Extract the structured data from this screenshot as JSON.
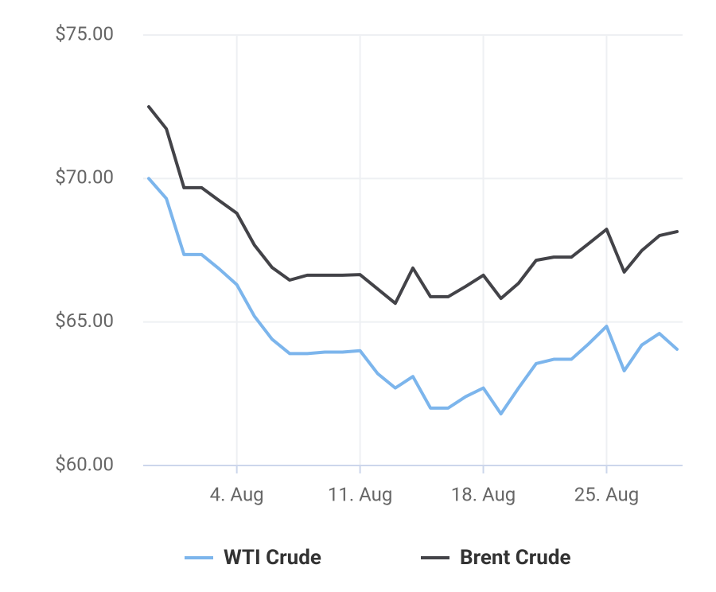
{
  "chart_data": {
    "type": "line",
    "x": [
      "30. Jul",
      "31. Jul",
      "1. Aug",
      "2. Aug",
      "3. Aug",
      "4. Aug",
      "5. Aug",
      "6. Aug",
      "7. Aug",
      "8. Aug",
      "9. Aug",
      "10. Aug",
      "11. Aug",
      "12. Aug",
      "13. Aug",
      "14. Aug",
      "15. Aug",
      "16. Aug",
      "17. Aug",
      "18. Aug",
      "19. Aug",
      "20. Aug",
      "21. Aug",
      "22. Aug",
      "23. Aug",
      "24. Aug",
      "25. Aug",
      "26. Aug",
      "27. Aug",
      "28. Aug",
      "29. Aug"
    ],
    "series": [
      {
        "name": "WTI Crude",
        "color": "#7cb5ec",
        "values": [
          70.0,
          69.3,
          67.35,
          67.35,
          66.85,
          66.3,
          65.2,
          64.4,
          63.9,
          63.9,
          63.95,
          63.95,
          64.0,
          63.2,
          62.7,
          63.1,
          62.0,
          62.0,
          62.4,
          62.7,
          61.8,
          62.7,
          63.55,
          63.7,
          63.7,
          64.25,
          64.85,
          63.3,
          64.2,
          64.6,
          64.05
        ]
      },
      {
        "name": "Brent Crude",
        "color": "#434348",
        "values": [
          72.5,
          71.73,
          69.68,
          69.68,
          69.23,
          68.79,
          67.68,
          66.9,
          66.46,
          66.63,
          66.63,
          66.63,
          66.65,
          66.15,
          65.65,
          66.88,
          65.88,
          65.88,
          66.24,
          66.63,
          65.82,
          66.35,
          67.15,
          67.26,
          67.26,
          67.74,
          68.23,
          66.74,
          67.49,
          68.01,
          68.15
        ]
      }
    ],
    "xticks": [
      "4. Aug",
      "11. Aug",
      "18. Aug",
      "25. Aug"
    ],
    "ylim": [
      60,
      75
    ],
    "yticks": [
      {
        "value": 60,
        "label": "$60.00"
      },
      {
        "value": 65,
        "label": "$65.00"
      },
      {
        "value": 70,
        "label": "$70.00"
      },
      {
        "value": 75,
        "label": "$75.00"
      }
    ],
    "grid": true,
    "legend": "bottom"
  }
}
